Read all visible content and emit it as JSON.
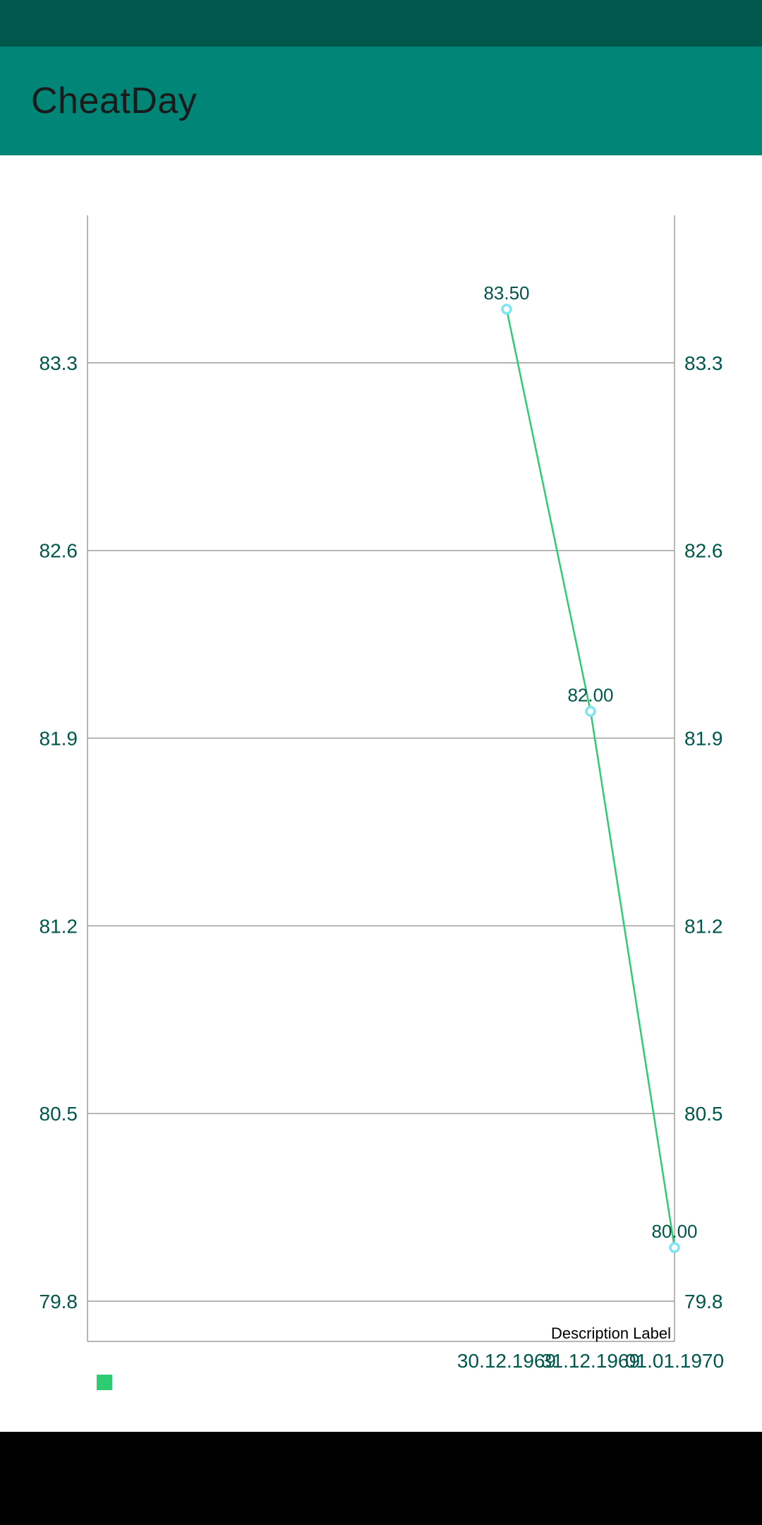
{
  "app": {
    "title": "CheatDay"
  },
  "colors": {
    "status_bar": "#00574b",
    "app_bar": "#008577",
    "axis_text": "#00574b",
    "line": "#2ecc71",
    "point_ring": "#7fe3f0",
    "grid": "#9e9e9e",
    "legend": "#2ecc71"
  },
  "chart_data": {
    "type": "line",
    "x": [
      "30.12.1969",
      "31.12.1969",
      "01.01.1970"
    ],
    "series": [
      {
        "values": [
          83.5,
          82.0,
          80.0
        ]
      }
    ],
    "point_labels": [
      "83.50",
      "82.00",
      "80.00"
    ],
    "y_ticks": [
      "83.3",
      "82.6",
      "81.9",
      "81.2",
      "80.5",
      "79.8"
    ],
    "ylim": [
      79.65,
      83.85
    ],
    "description": "Description Label",
    "legend": {
      "position": "bottom-left",
      "labels": [
        ""
      ]
    },
    "grid": true
  }
}
